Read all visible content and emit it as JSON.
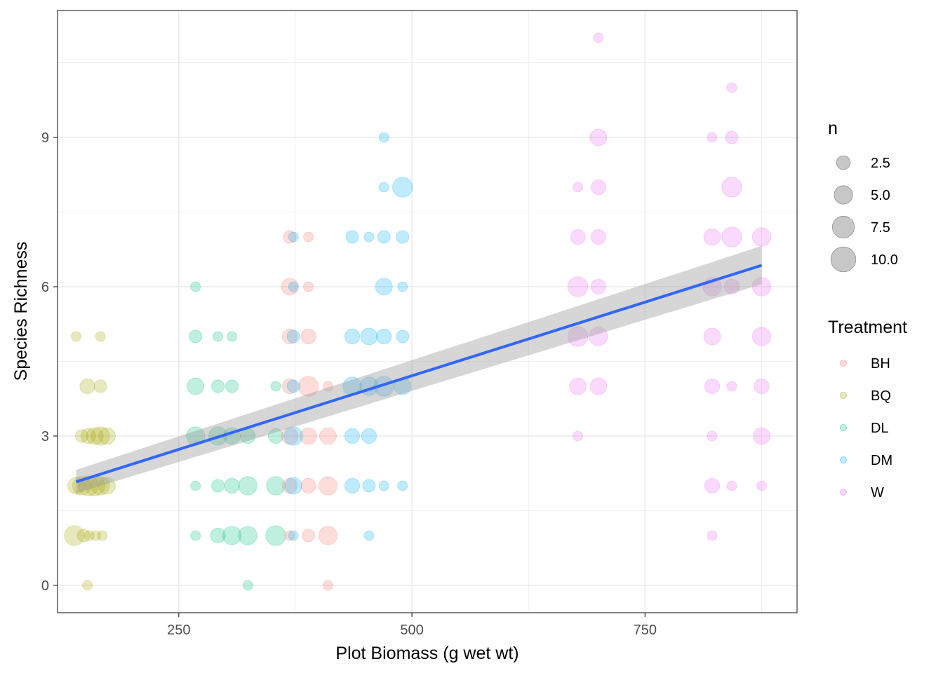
{
  "chart_data": {
    "type": "scatter",
    "xlabel": "Plot Biomass (g wet wt)",
    "ylabel": "Species Richness",
    "xlim": [
      120,
      913
    ],
    "ylim": [
      -0.55,
      11.55
    ],
    "x_ticks": [
      250,
      500,
      750
    ],
    "x_tick_labels": [
      "250",
      "500",
      "750"
    ],
    "y_ticks": [
      0,
      3,
      6,
      9
    ],
    "y_tick_labels": [
      "0",
      "3",
      "6",
      "9"
    ],
    "grid": true,
    "legend_position": "right",
    "size_legend": {
      "title": "n",
      "entries": [
        {
          "label": "2.5",
          "value": 2.5
        },
        {
          "label": "5.0",
          "value": 5.0
        },
        {
          "label": "7.5",
          "value": 7.5
        },
        {
          "label": "10.0",
          "value": 10.0
        }
      ]
    },
    "color_legend": {
      "title": "Treatment",
      "entries": [
        {
          "label": "BH",
          "color": "#F8766D"
        },
        {
          "label": "BQ",
          "color": "#A3A500"
        },
        {
          "label": "DL",
          "color": "#00BF7D"
        },
        {
          "label": "DM",
          "color": "#00B0F6"
        },
        {
          "label": "W",
          "color": "#E76BF3"
        }
      ]
    },
    "trend_line": {
      "color": "#3366FF",
      "band_color": "#999999",
      "x": [
        140,
        875
      ],
      "y": [
        2.08,
        6.43
      ],
      "lower": [
        1.85,
        6.05
      ],
      "upper": [
        2.32,
        6.82
      ]
    },
    "series": [
      {
        "name": "BQ",
        "color": "#A3A500",
        "points": [
          [
            140,
            5,
            1
          ],
          [
            152,
            4,
            3
          ],
          [
            166,
            4,
            2
          ],
          [
            166,
            5,
            1
          ],
          [
            146,
            3,
            2
          ],
          [
            153,
            3,
            3
          ],
          [
            160,
            3,
            4
          ],
          [
            166,
            3,
            5
          ],
          [
            173,
            3,
            4
          ],
          [
            140,
            2,
            4
          ],
          [
            146,
            2,
            5
          ],
          [
            153,
            2,
            6
          ],
          [
            160,
            2,
            6
          ],
          [
            166,
            2,
            5
          ],
          [
            173,
            2,
            4
          ],
          [
            138,
            1,
            6
          ],
          [
            148,
            1,
            2
          ],
          [
            154,
            1,
            1
          ],
          [
            161,
            1,
            1
          ],
          [
            168,
            1,
            1
          ],
          [
            152,
            0,
            1
          ]
        ]
      },
      {
        "name": "DL",
        "color": "#00BF7D",
        "points": [
          [
            268,
            6,
            1
          ],
          [
            268,
            5,
            2
          ],
          [
            292,
            5,
            1
          ],
          [
            307,
            5,
            1
          ],
          [
            268,
            4,
            4
          ],
          [
            292,
            4,
            2
          ],
          [
            307,
            4,
            2
          ],
          [
            354,
            4,
            1
          ],
          [
            268,
            3,
            5
          ],
          [
            292,
            3,
            5
          ],
          [
            307,
            3,
            4
          ],
          [
            324,
            3,
            3
          ],
          [
            354,
            3,
            3
          ],
          [
            268,
            2,
            1
          ],
          [
            292,
            2,
            2
          ],
          [
            307,
            2,
            3
          ],
          [
            324,
            2,
            5
          ],
          [
            354,
            2,
            5
          ],
          [
            268,
            1,
            1
          ],
          [
            292,
            1,
            3
          ],
          [
            307,
            1,
            5
          ],
          [
            324,
            1,
            5
          ],
          [
            354,
            1,
            6
          ],
          [
            324,
            0,
            1
          ]
        ]
      },
      {
        "name": "BH",
        "color": "#F8766D",
        "points": [
          [
            369,
            7,
            2
          ],
          [
            389,
            7,
            1
          ],
          [
            369,
            6,
            4
          ],
          [
            389,
            6,
            1
          ],
          [
            369,
            5,
            3
          ],
          [
            389,
            5,
            3
          ],
          [
            369,
            4,
            3
          ],
          [
            389,
            4,
            6
          ],
          [
            410,
            4,
            1
          ],
          [
            369,
            3,
            4
          ],
          [
            389,
            3,
            4
          ],
          [
            410,
            3,
            4
          ],
          [
            369,
            2,
            3
          ],
          [
            389,
            2,
            3
          ],
          [
            410,
            2,
            5
          ],
          [
            369,
            1,
            1
          ],
          [
            389,
            1,
            2
          ],
          [
            410,
            1,
            5
          ],
          [
            410,
            0,
            1
          ]
        ]
      },
      {
        "name": "DM",
        "color": "#00B0F6",
        "points": [
          [
            373,
            7,
            1
          ],
          [
            373,
            6,
            1
          ],
          [
            373,
            5,
            2
          ],
          [
            373,
            4,
            2
          ],
          [
            373,
            3,
            5
          ],
          [
            373,
            2,
            4
          ],
          [
            373,
            1,
            1
          ],
          [
            470,
            9,
            1
          ],
          [
            470,
            8,
            1
          ],
          [
            490,
            8,
            6
          ],
          [
            436,
            7,
            2
          ],
          [
            454,
            7,
            1
          ],
          [
            470,
            7,
            2
          ],
          [
            490,
            7,
            2
          ],
          [
            470,
            6,
            4
          ],
          [
            490,
            6,
            1
          ],
          [
            436,
            5,
            3
          ],
          [
            454,
            5,
            4
          ],
          [
            470,
            5,
            3
          ],
          [
            490,
            5,
            2
          ],
          [
            436,
            4,
            5
          ],
          [
            454,
            4,
            5
          ],
          [
            470,
            4,
            6
          ],
          [
            490,
            4,
            4
          ],
          [
            436,
            3,
            3
          ],
          [
            454,
            3,
            3
          ],
          [
            436,
            2,
            3
          ],
          [
            454,
            2,
            2
          ],
          [
            470,
            2,
            1
          ],
          [
            490,
            2,
            1
          ],
          [
            454,
            1,
            1
          ]
        ]
      },
      {
        "name": "W",
        "color": "#E76BF3",
        "points": [
          [
            700,
            11,
            1
          ],
          [
            700,
            9,
            4
          ],
          [
            822,
            9,
            1
          ],
          [
            843,
            9,
            2
          ],
          [
            678,
            8,
            1
          ],
          [
            700,
            8,
            3
          ],
          [
            843,
            8,
            6
          ],
          [
            843,
            10,
            1
          ],
          [
            678,
            7,
            3
          ],
          [
            700,
            7,
            3
          ],
          [
            822,
            7,
            4
          ],
          [
            843,
            7,
            6
          ],
          [
            875,
            7,
            5
          ],
          [
            678,
            6,
            6
          ],
          [
            700,
            6,
            3
          ],
          [
            822,
            6,
            5
          ],
          [
            843,
            6,
            3
          ],
          [
            875,
            6,
            5
          ],
          [
            678,
            5,
            6
          ],
          [
            700,
            5,
            5
          ],
          [
            822,
            5,
            4
          ],
          [
            875,
            5,
            5
          ],
          [
            678,
            4,
            4
          ],
          [
            700,
            4,
            4
          ],
          [
            822,
            4,
            3
          ],
          [
            843,
            4,
            1
          ],
          [
            875,
            4,
            3
          ],
          [
            678,
            3,
            1
          ],
          [
            822,
            3,
            1
          ],
          [
            875,
            3,
            4
          ],
          [
            822,
            2,
            3
          ],
          [
            843,
            2,
            1
          ],
          [
            875,
            2,
            1
          ],
          [
            822,
            1,
            1
          ]
        ]
      }
    ]
  }
}
